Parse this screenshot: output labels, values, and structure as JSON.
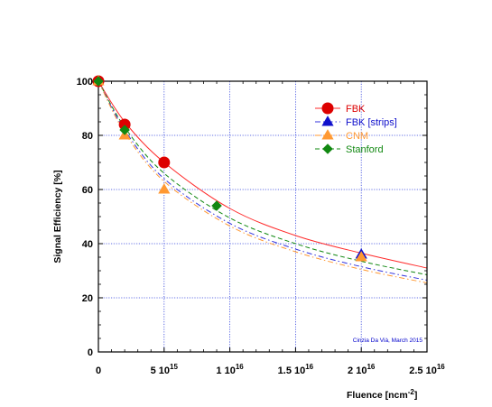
{
  "chart_data": {
    "type": "scatter",
    "title": "",
    "xlabel": "Fluence [ncm",
    "xlabel_sup": "-2",
    "xlabel_close": "]",
    "ylabel": "Signal Efficiency [%]",
    "xlim": [
      0,
      2.5e+16
    ],
    "ylim": [
      0,
      100
    ],
    "grid": true,
    "legend_position": "top-right",
    "x_ticks": [
      {
        "value": 0,
        "base": "0",
        "exp": ""
      },
      {
        "value": 5000000000000000.0,
        "base": "5 10",
        "exp": "15"
      },
      {
        "value": 1e+16,
        "base": "1 10",
        "exp": "16"
      },
      {
        "value": 1.5e+16,
        "base": "1.5 10",
        "exp": "16"
      },
      {
        "value": 2e+16,
        "base": "2 10",
        "exp": "16"
      },
      {
        "value": 2.5e+16,
        "base": "2.5 10",
        "exp": "16"
      }
    ],
    "y_ticks": [
      {
        "value": 0,
        "label": "0"
      },
      {
        "value": 20,
        "label": "20"
      },
      {
        "value": 40,
        "label": "40"
      },
      {
        "value": 60,
        "label": "60"
      },
      {
        "value": 80,
        "label": "80"
      },
      {
        "value": 100,
        "label": "100"
      }
    ],
    "series": [
      {
        "name": "FBK",
        "marker": "circle",
        "color": "#dd0000",
        "line_color": "#ff2a2a",
        "dash": "",
        "x": [
          0,
          2000000000000000.0,
          5000000000000000.0
        ],
        "y": [
          100,
          84,
          70
        ]
      },
      {
        "name": "FBK [strips]",
        "marker": "triangle",
        "color": "#1010cc",
        "line_color": "#3333dd",
        "dash": "6,3,1.5,3",
        "x": [
          2e+16
        ],
        "y": [
          36
        ]
      },
      {
        "name": "CNM",
        "marker": "triangle",
        "color": "#ff9933",
        "line_color": "#ff9933",
        "dash": "6,3,1.5,3",
        "x": [
          0,
          2000000000000000.0,
          5000000000000000.0,
          2e+16
        ],
        "y": [
          100,
          80,
          60,
          35
        ]
      },
      {
        "name": "Stanford",
        "marker": "diamond",
        "color": "#118811",
        "line_color": "#118811",
        "dash": "5,3",
        "x": [
          0,
          2000000000000000.0,
          9000000000000000.0
        ],
        "y": [
          100,
          82,
          54
        ]
      }
    ],
    "fit_curves": [
      {
        "series": "FBK",
        "points": [
          [
            0,
            100
          ],
          [
            2000000000000000.0,
            85
          ],
          [
            5000000000000000.0,
            70
          ],
          [
            1e+16,
            53
          ],
          [
            1.5e+16,
            43
          ],
          [
            2e+16,
            36.5
          ],
          [
            2.5e+16,
            31
          ]
        ]
      },
      {
        "series": "Stanford",
        "points": [
          [
            0,
            100
          ],
          [
            2000000000000000.0,
            83
          ],
          [
            5000000000000000.0,
            66
          ],
          [
            1e+16,
            49.5
          ],
          [
            1.5e+16,
            40
          ],
          [
            2e+16,
            33.5
          ],
          [
            2.5e+16,
            28.5
          ]
        ]
      },
      {
        "series": "FBK [strips]",
        "points": [
          [
            0,
            100
          ],
          [
            2000000000000000.0,
            82
          ],
          [
            5000000000000000.0,
            64
          ],
          [
            1e+16,
            47.5
          ],
          [
            1.5e+16,
            38
          ],
          [
            2e+16,
            31.5
          ],
          [
            2.5e+16,
            26.5
          ]
        ]
      },
      {
        "series": "CNM",
        "points": [
          [
            0,
            100
          ],
          [
            2000000000000000.0,
            81
          ],
          [
            5000000000000000.0,
            63
          ],
          [
            1e+16,
            46.5
          ],
          [
            1.5e+16,
            37
          ],
          [
            2e+16,
            30.5
          ],
          [
            2.5e+16,
            25.5
          ]
        ]
      }
    ],
    "annotation": "Cinzia Da Vià, March 2015"
  }
}
